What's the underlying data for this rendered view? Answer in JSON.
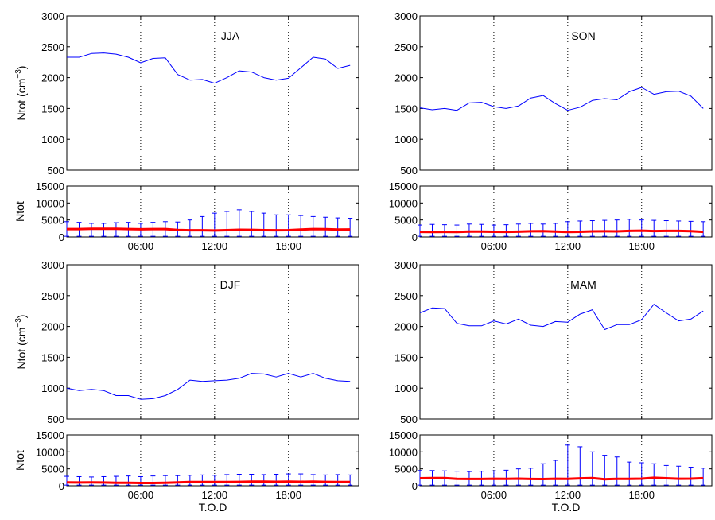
{
  "chart_data": [
    {
      "type": "line",
      "season": "JJA",
      "ylabel": "Ntot (cm",
      "ylabel_sup": "−3",
      "ylabel_close": ")",
      "ylim": [
        500,
        3000
      ],
      "yticks": [
        "500",
        "1000",
        "1500",
        "2000",
        "2500",
        "3000"
      ],
      "grid": "vertical dotted at 06:00, 12:00, 18:00",
      "x": [
        0,
        1,
        2,
        3,
        4,
        5,
        6,
        7,
        8,
        9,
        10,
        11,
        12,
        13,
        14,
        15,
        16,
        17,
        18,
        19,
        20,
        21,
        22,
        23
      ],
      "series": [
        {
          "color": "#0000ff",
          "values": [
            2330,
            2330,
            2390,
            2400,
            2380,
            2330,
            2240,
            2310,
            2320,
            2050,
            1960,
            1970,
            1910,
            2000,
            2110,
            2090,
            2000,
            1960,
            1990,
            2160,
            2330,
            2300,
            2150,
            2200
          ]
        }
      ]
    },
    {
      "type": "line",
      "season": "SON",
      "ylim": [
        500,
        3000
      ],
      "yticks": [
        "500",
        "1000",
        "1500",
        "2000",
        "2500",
        "3000"
      ],
      "x": [
        0,
        1,
        2,
        3,
        4,
        5,
        6,
        7,
        8,
        9,
        10,
        11,
        12,
        13,
        14,
        15,
        16,
        17,
        18,
        19,
        20,
        21,
        22,
        23
      ],
      "series": [
        {
          "color": "#0000ff",
          "values": [
            1510,
            1480,
            1500,
            1470,
            1590,
            1600,
            1530,
            1500,
            1540,
            1670,
            1710,
            1580,
            1470,
            1520,
            1630,
            1660,
            1640,
            1770,
            1840,
            1730,
            1770,
            1780,
            1700,
            1500
          ]
        }
      ]
    },
    {
      "type": "line",
      "season": "DJF",
      "ylabel": "Ntot (cm",
      "ylabel_sup": "−3",
      "ylabel_close": ")",
      "ylim": [
        500,
        3000
      ],
      "yticks": [
        "500",
        "1000",
        "1500",
        "2000",
        "2500",
        "3000"
      ],
      "x": [
        0,
        1,
        2,
        3,
        4,
        5,
        6,
        7,
        8,
        9,
        10,
        11,
        12,
        13,
        14,
        15,
        16,
        17,
        18,
        19,
        20,
        21,
        22,
        23
      ],
      "series": [
        {
          "color": "#0000ff",
          "values": [
            1000,
            960,
            980,
            960,
            880,
            880,
            820,
            830,
            880,
            980,
            1130,
            1110,
            1120,
            1130,
            1160,
            1240,
            1230,
            1180,
            1240,
            1180,
            1240,
            1160,
            1120,
            1110
          ]
        }
      ]
    },
    {
      "type": "line",
      "season": "MAM",
      "ylim": [
        500,
        3000
      ],
      "yticks": [
        "500",
        "1000",
        "1500",
        "2000",
        "2500",
        "3000"
      ],
      "x": [
        0,
        1,
        2,
        3,
        4,
        5,
        6,
        7,
        8,
        9,
        10,
        11,
        12,
        13,
        14,
        15,
        16,
        17,
        18,
        19,
        20,
        21,
        22,
        23
      ],
      "series": [
        {
          "color": "#0000ff",
          "values": [
            2220,
            2300,
            2290,
            2050,
            2010,
            2010,
            2090,
            2040,
            2120,
            2020,
            2000,
            2080,
            2070,
            2200,
            2270,
            1950,
            2030,
            2030,
            2110,
            2360,
            2220,
            2090,
            2120,
            2250
          ]
        }
      ]
    },
    {
      "type": "line",
      "season_ref": "JJA",
      "ylabel": "Ntot",
      "ylim": [
        0,
        15000
      ],
      "yticks": [
        "0",
        "5000",
        "10000",
        "15000"
      ],
      "xticks": [
        "06:00",
        "12:00",
        "18:00"
      ],
      "x": [
        0,
        1,
        2,
        3,
        4,
        5,
        6,
        7,
        8,
        9,
        10,
        11,
        12,
        13,
        14,
        15,
        16,
        17,
        18,
        19,
        20,
        21,
        22,
        23
      ],
      "series": [
        {
          "color": "#ff0000",
          "values": [
            2330,
            2330,
            2390,
            2400,
            2380,
            2330,
            2240,
            2310,
            2320,
            2050,
            1960,
            1970,
            1910,
            2000,
            2110,
            2090,
            2000,
            1960,
            1990,
            2160,
            2330,
            2300,
            2150,
            2200
          ]
        }
      ],
      "errorbars": {
        "color": "#0000ff",
        "upper": [
          4500,
          4300,
          4000,
          4000,
          4200,
          4300,
          4000,
          4300,
          4500,
          4400,
          5000,
          6000,
          7000,
          7500,
          8000,
          7500,
          7000,
          6500,
          6500,
          6300,
          6000,
          5800,
          5600,
          5500
        ],
        "lower": [
          200,
          200,
          200,
          200,
          200,
          200,
          200,
          200,
          200,
          200,
          200,
          200,
          200,
          200,
          200,
          200,
          200,
          200,
          200,
          200,
          200,
          200,
          200,
          200
        ]
      }
    },
    {
      "type": "line",
      "season_ref": "SON",
      "ylim": [
        0,
        15000
      ],
      "yticks": [
        "0",
        "5000",
        "10000",
        "15000"
      ],
      "xticks": [
        "06:00",
        "12:00",
        "18:00"
      ],
      "x": [
        0,
        1,
        2,
        3,
        4,
        5,
        6,
        7,
        8,
        9,
        10,
        11,
        12,
        13,
        14,
        15,
        16,
        17,
        18,
        19,
        20,
        21,
        22,
        23
      ],
      "series": [
        {
          "color": "#ff0000",
          "values": [
            1510,
            1480,
            1500,
            1470,
            1590,
            1600,
            1530,
            1500,
            1540,
            1670,
            1710,
            1580,
            1470,
            1520,
            1630,
            1660,
            1640,
            1770,
            1840,
            1730,
            1770,
            1780,
            1700,
            1500
          ]
        }
      ],
      "errorbars": {
        "color": "#0000ff",
        "upper": [
          3500,
          3700,
          3600,
          3500,
          3800,
          3700,
          3500,
          3600,
          3800,
          4000,
          3800,
          4000,
          4500,
          4700,
          4800,
          4900,
          5000,
          5200,
          5000,
          4900,
          4800,
          4700,
          4600,
          4500
        ],
        "lower": [
          200,
          200,
          200,
          200,
          200,
          200,
          200,
          200,
          200,
          200,
          200,
          200,
          200,
          200,
          200,
          200,
          200,
          200,
          200,
          200,
          200,
          200,
          200,
          200
        ]
      }
    },
    {
      "type": "line",
      "season_ref": "DJF",
      "ylabel": "Ntot",
      "xlabel": "T.O.D",
      "ylim": [
        0,
        15000
      ],
      "yticks": [
        "0",
        "5000",
        "10000",
        "15000"
      ],
      "xticks": [
        "06:00",
        "12:00",
        "18:00"
      ],
      "x": [
        0,
        1,
        2,
        3,
        4,
        5,
        6,
        7,
        8,
        9,
        10,
        11,
        12,
        13,
        14,
        15,
        16,
        17,
        18,
        19,
        20,
        21,
        22,
        23
      ],
      "series": [
        {
          "color": "#ff0000",
          "values": [
            1000,
            960,
            980,
            960,
            880,
            880,
            820,
            830,
            880,
            980,
            1130,
            1110,
            1120,
            1130,
            1160,
            1240,
            1230,
            1180,
            1240,
            1180,
            1240,
            1160,
            1120,
            1110
          ]
        }
      ],
      "errorbars": {
        "color": "#0000ff",
        "upper": [
          2800,
          2700,
          2600,
          2700,
          2800,
          2900,
          2700,
          2900,
          3000,
          3000,
          3100,
          3200,
          3100,
          3300,
          3400,
          3400,
          3300,
          3400,
          3500,
          3500,
          3300,
          3200,
          3300,
          3200
        ],
        "lower": [
          200,
          200,
          200,
          200,
          200,
          200,
          200,
          200,
          200,
          200,
          200,
          200,
          200,
          200,
          200,
          200,
          200,
          200,
          200,
          200,
          200,
          200,
          200,
          200
        ]
      }
    },
    {
      "type": "line",
      "season_ref": "MAM",
      "xlabel": "T.O.D",
      "ylim": [
        0,
        15000
      ],
      "yticks": [
        "0",
        "5000",
        "10000",
        "15000"
      ],
      "xticks": [
        "06:00",
        "12:00",
        "18:00"
      ],
      "x": [
        0,
        1,
        2,
        3,
        4,
        5,
        6,
        7,
        8,
        9,
        10,
        11,
        12,
        13,
        14,
        15,
        16,
        17,
        18,
        19,
        20,
        21,
        22,
        23
      ],
      "series": [
        {
          "color": "#ff0000",
          "values": [
            2220,
            2300,
            2290,
            2050,
            2010,
            2010,
            2090,
            2040,
            2120,
            2020,
            2000,
            2080,
            2070,
            2200,
            2270,
            1950,
            2030,
            2030,
            2110,
            2360,
            2220,
            2090,
            2120,
            2250
          ]
        }
      ],
      "errorbars": {
        "color": "#0000ff",
        "upper": [
          4500,
          4500,
          4400,
          4300,
          4200,
          4300,
          4400,
          4600,
          5000,
          5200,
          6500,
          7500,
          12000,
          11500,
          10000,
          9000,
          8500,
          7000,
          6800,
          6500,
          6000,
          5800,
          5500,
          5200
        ],
        "lower": [
          200,
          200,
          200,
          200,
          200,
          200,
          200,
          200,
          200,
          200,
          200,
          200,
          200,
          200,
          200,
          200,
          200,
          200,
          200,
          200,
          200,
          200,
          200,
          200
        ]
      }
    }
  ]
}
